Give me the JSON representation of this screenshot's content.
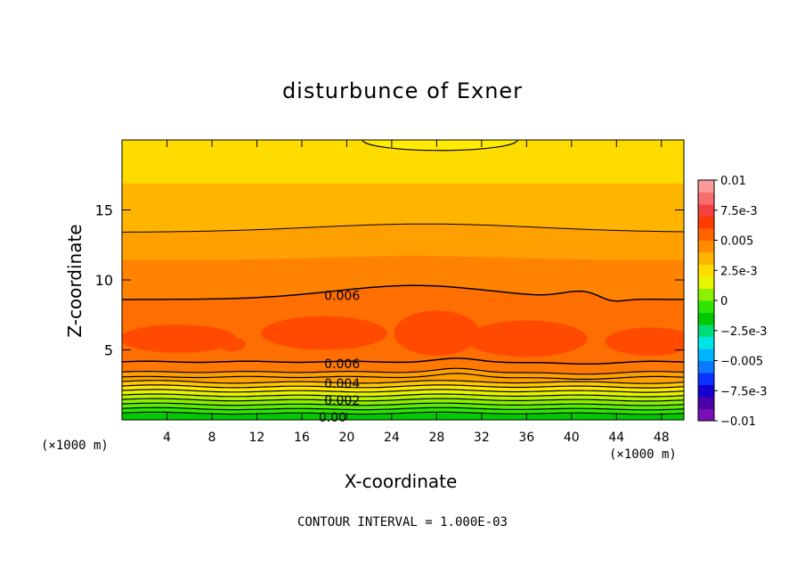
{
  "chart_data": {
    "type": "heatmap",
    "title": "disturbunce of Exner",
    "xlabel": "X-coordinate",
    "ylabel": "Z-coordinate",
    "x_unit_left": "(×1000 m)",
    "x_unit_right": "(×1000 m)",
    "footer": "CONTOUR INTERVAL = 1.000E-03",
    "xlim": [
      0,
      50
    ],
    "ylim": [
      0,
      20
    ],
    "x_ticks": [
      4,
      8,
      12,
      16,
      20,
      24,
      28,
      32,
      36,
      40,
      44,
      48
    ],
    "x_tick_labels": [
      "4",
      "8",
      "12",
      "16",
      "20",
      "24",
      "28",
      "32",
      "36",
      "40",
      "44",
      "48"
    ],
    "y_ticks": [
      5,
      10,
      15
    ],
    "y_tick_labels": [
      "5",
      "10",
      "15"
    ],
    "contour_labels": [
      {
        "text": "0.006",
        "x": 18.0,
        "z": 8.9
      },
      {
        "text": "0.006",
        "x": 18.0,
        "z": 4.0
      },
      {
        "text": "0.004",
        "x": 18.0,
        "z": 2.6
      },
      {
        "text": "0.002",
        "x": 18.0,
        "z": 1.4
      },
      {
        "text": "0.00",
        "x": 17.5,
        "z": 0.2
      }
    ],
    "colorbar": {
      "min": -0.01,
      "max": 0.01,
      "labels": [
        {
          "text": "0.01",
          "value": 0.01
        },
        {
          "text": "7.5e-3",
          "value": 0.0075
        },
        {
          "text": "0.005",
          "value": 0.005
        },
        {
          "text": "2.5e-3",
          "value": 0.0025
        },
        {
          "text": "0",
          "value": 0
        },
        {
          "text": "−2.5e-3",
          "value": -0.0025
        },
        {
          "text": "−0.005",
          "value": -0.005
        },
        {
          "text": "−7.5e-3",
          "value": -0.0075
        },
        {
          "text": "−0.01",
          "value": -0.01
        }
      ],
      "colors": [
        "#7a0fb5",
        "#4a00a8",
        "#1400d2",
        "#0a32ff",
        "#0a78ff",
        "#00b4ff",
        "#00e6e6",
        "#00dc78",
        "#00c800",
        "#2ee600",
        "#8cf000",
        "#e6f500",
        "#ffdc00",
        "#ffb400",
        "#ff8c00",
        "#ff6400",
        "#ff3c00",
        "#f54040",
        "#f86e6e",
        "#fa9a9a"
      ]
    },
    "bands": [
      {
        "value_range": [
          0.0,
          0.0005
        ],
        "color": "#00c800"
      },
      {
        "value_range": [
          0.0005,
          0.001
        ],
        "color": "#2ee600"
      },
      {
        "value_range": [
          0.001,
          0.0015
        ],
        "color": "#5aee00"
      },
      {
        "value_range": [
          0.0015,
          0.002
        ],
        "color": "#8cf000"
      },
      {
        "value_range": [
          0.002,
          0.0025
        ],
        "color": "#b8f200"
      },
      {
        "value_range": [
          0.0025,
          0.003
        ],
        "color": "#e6f500"
      },
      {
        "value_range": [
          0.003,
          0.0035
        ],
        "color": "#ffe600"
      },
      {
        "value_range": [
          0.0035,
          0.004
        ],
        "color": "#ffd200"
      },
      {
        "value_range": [
          0.004,
          0.005
        ],
        "color": "#ffb400"
      },
      {
        "value_range": [
          0.005,
          0.006
        ],
        "color": "#ff9600"
      },
      {
        "value_range": [
          0.006,
          0.0065
        ],
        "color": "#ff7800"
      },
      {
        "value_range": [
          0.0065,
          0.007
        ],
        "color": "#ff6400"
      },
      {
        "value_range": [
          0.007,
          0.0075
        ],
        "color": "#ff3c00"
      }
    ]
  }
}
